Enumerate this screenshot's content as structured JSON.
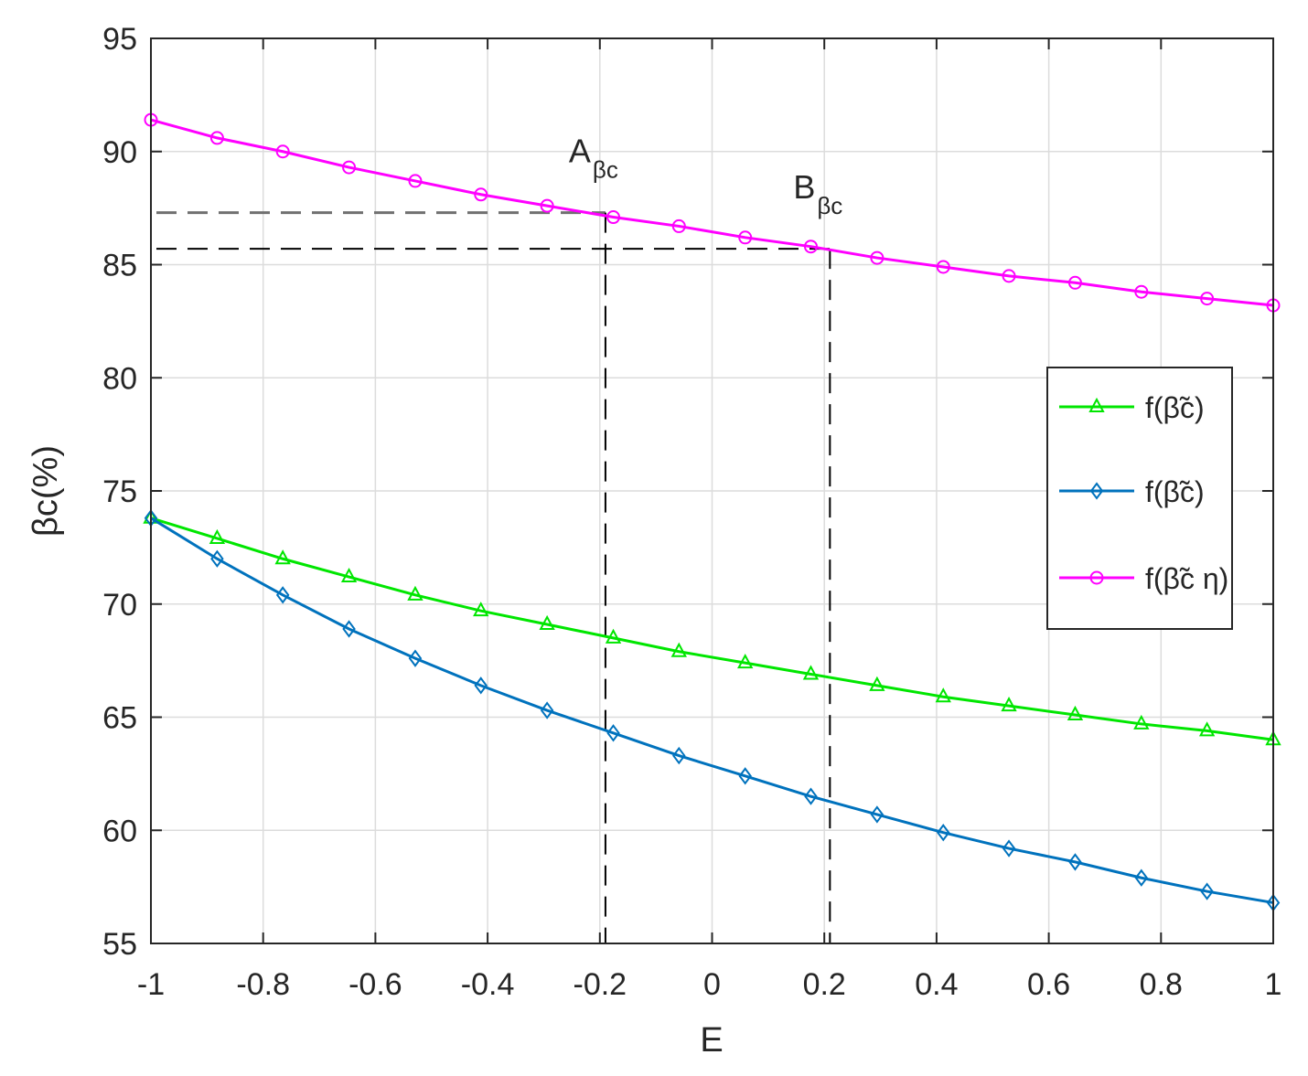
{
  "chart_data": {
    "type": "line",
    "xlabel": "E",
    "ylabel": "βc(%)",
    "xlim": [
      -1,
      1
    ],
    "ylim": [
      55,
      95
    ],
    "xticks": [
      -1,
      -0.8,
      -0.6,
      -0.4,
      -0.2,
      0,
      0.2,
      0.4,
      0.6,
      0.8,
      1
    ],
    "yticks": [
      55,
      60,
      65,
      70,
      75,
      80,
      85,
      90,
      95
    ],
    "xtick_labels": [
      "-1",
      "-0.8",
      "-0.6",
      "-0.4",
      "-0.2",
      "0",
      "0.2",
      "0.4",
      "0.6",
      "0.8",
      "1"
    ],
    "ytick_labels": [
      "55",
      "60",
      "65",
      "70",
      "75",
      "80",
      "85",
      "90",
      "95"
    ],
    "grid": true,
    "legend_position": "right",
    "x": [
      -1,
      -0.882,
      -0.765,
      -0.647,
      -0.529,
      -0.412,
      -0.294,
      -0.176,
      -0.059,
      0.059,
      0.176,
      0.294,
      0.412,
      0.529,
      0.647,
      0.765,
      0.882,
      1
    ],
    "series": [
      {
        "name": "f(β̃c)",
        "color": "#00e600",
        "marker": "triangle",
        "values": [
          73.8,
          72.9,
          72.0,
          71.2,
          70.4,
          69.7,
          69.1,
          68.5,
          67.9,
          67.4,
          66.9,
          66.4,
          65.9,
          65.5,
          65.1,
          64.7,
          64.4,
          64.0
        ]
      },
      {
        "name": "f(β̃c)",
        "color": "#0072bd",
        "marker": "diamond",
        "values": [
          73.8,
          72.0,
          70.4,
          68.9,
          67.6,
          66.4,
          65.3,
          64.3,
          63.3,
          62.4,
          61.5,
          60.7,
          59.9,
          59.2,
          58.6,
          57.9,
          57.3,
          56.8
        ]
      },
      {
        "name": "f(β̃c η)",
        "color": "#ff00ff",
        "marker": "circle",
        "values": [
          91.4,
          90.6,
          90.0,
          89.3,
          88.7,
          88.1,
          87.6,
          87.1,
          86.7,
          86.2,
          85.8,
          85.3,
          84.9,
          84.5,
          84.2,
          83.8,
          83.5,
          83.2
        ]
      }
    ],
    "annotations": [
      {
        "label": "A",
        "subscript": "βc",
        "x": -0.19,
        "y": 87.3,
        "guide_color": "#707070"
      },
      {
        "label": "B",
        "subscript": "βc",
        "x": 0.21,
        "y": 85.7,
        "guide_color": "#000000"
      }
    ]
  }
}
